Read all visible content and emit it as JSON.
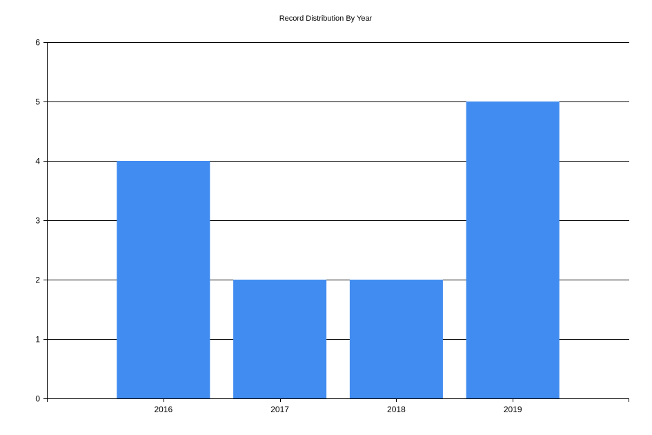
{
  "chart_data": {
    "type": "bar",
    "title": "Record Distribution By Year",
    "xlabel": "",
    "ylabel": "",
    "categories": [
      "2016",
      "2017",
      "2018",
      "2019"
    ],
    "values": [
      4,
      2,
      2,
      5
    ],
    "ylim": [
      0,
      6
    ],
    "yticks": [
      0,
      1,
      2,
      3,
      4,
      5,
      6
    ],
    "grid": true,
    "legend": "none",
    "bar_color": "#418CF0",
    "axis_color": "#000000"
  }
}
